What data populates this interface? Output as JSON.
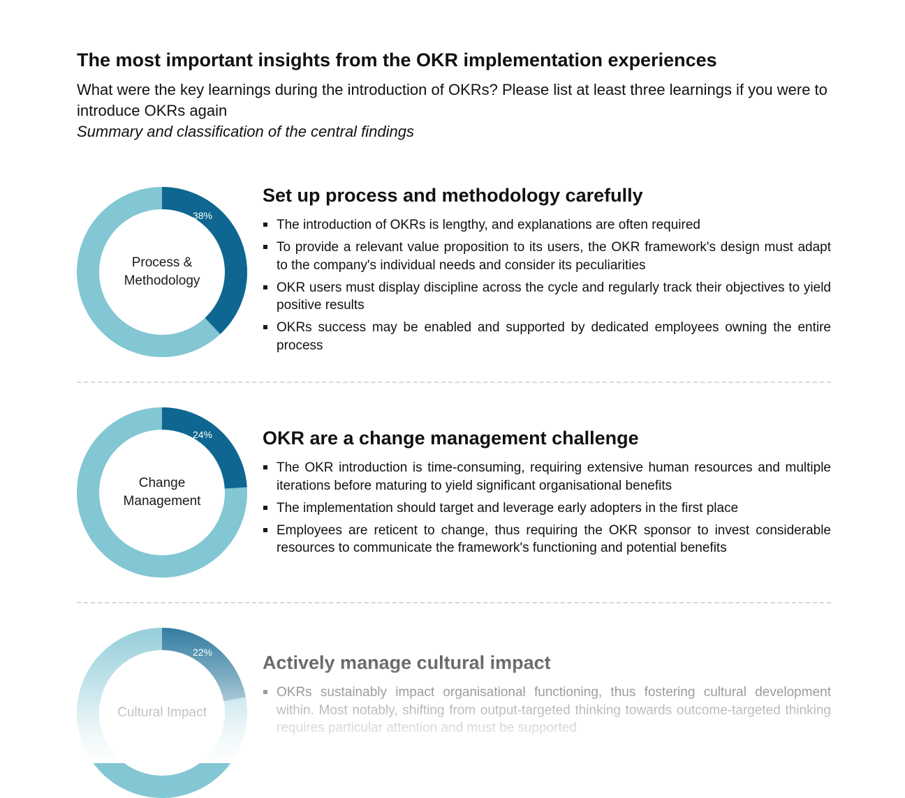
{
  "header": {
    "title": "The most important insights from the OKR implementation experiences",
    "question": "What were the key learnings during the introduction of OKRs? Please list at least three learnings if you were to introduce OKRs again",
    "summary": "Summary and classification of the central findings"
  },
  "colors": {
    "dark": "#0f6690",
    "light": "#83c6d4"
  },
  "sections": [
    {
      "donut_label_line1": "Process &",
      "donut_label_line2": "Methodology",
      "percent_label": "38%",
      "percent_value": 38,
      "heading": "Set up process and methodology carefully",
      "bullets": [
        "The introduction of OKRs is lengthy, and explanations are often required",
        "To provide a relevant value proposition to its users, the OKR framework's design must adapt to the company's individual needs and consider its peculiarities",
        "OKR users must display discipline across the cycle and regularly track their objectives to yield positive results",
        "OKRs success may be enabled and supported by dedicated employees owning the entire process"
      ]
    },
    {
      "donut_label_line1": "Change",
      "donut_label_line2": "Management",
      "percent_label": "24%",
      "percent_value": 24,
      "heading": "OKR are a change management challenge",
      "bullets": [
        "The OKR introduction is time-consuming, requiring extensive human resources and multiple iterations before maturing to yield significant organisational benefits",
        "The implementation should target and leverage early adopters in the first place",
        "Employees are reticent to change, thus requiring the OKR sponsor to invest considerable resources to communicate the framework's functioning and potential benefits"
      ]
    },
    {
      "donut_label_line1": "Cultural Impact",
      "donut_label_line2": "",
      "percent_label": "22%",
      "percent_value": 22,
      "heading": "Actively manage cultural impact",
      "bullets": [
        "OKRs sustainably impact organisational functioning, thus fostering cultural development within. Most notably, shifting from output-targeted thinking towards outcome-targeted thinking requires particular attention and must be supported"
      ]
    }
  ]
}
